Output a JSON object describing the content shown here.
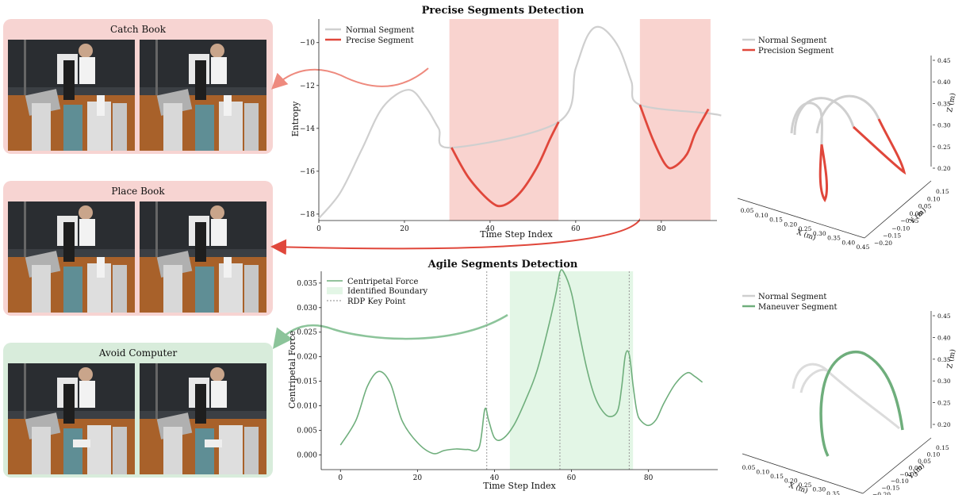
{
  "panels": [
    {
      "title": "Catch Book",
      "kind": "precise"
    },
    {
      "title": "Place Book",
      "kind": "precise"
    },
    {
      "title": "Avoid Computer",
      "kind": "agile"
    }
  ],
  "colors": {
    "normal": "#cfcfcf",
    "precise": "#e0473b",
    "precise_band": "#f9d3cf",
    "agile": "#6fae7c",
    "agile_band": "#e3f6e6",
    "panel_red": "#f7d4d2",
    "panel_green": "#d8ecdb"
  },
  "chart_data": [
    {
      "type": "line",
      "title": "Precise Segments Detection",
      "xlabel": "Time Step Index",
      "ylabel": "Entropy",
      "xlim": [
        0,
        93
      ],
      "ylim": [
        -18.3,
        -8.9
      ],
      "xticks": [
        0,
        20,
        40,
        60,
        80
      ],
      "yticks": [
        -18,
        -16,
        -14,
        -12,
        -10
      ],
      "legend": [
        "Normal Segment",
        "Precise Segment"
      ],
      "highlight_ranges": [
        [
          30.5,
          56
        ],
        [
          75,
          91.5
        ]
      ],
      "series": [
        {
          "name": "Normal Segment",
          "x": [
            0,
            5,
            10,
            15,
            21,
            25,
            28,
            31,
            56,
            60,
            63,
            66,
            70,
            73,
            75,
            91,
            94
          ],
          "y": [
            -18.2,
            -17.0,
            -15.0,
            -13.0,
            -12.2,
            -13.0,
            -14.0,
            -14.9,
            -13.7,
            -11.2,
            -9.6,
            -9.3,
            -10.2,
            -11.8,
            -12.9,
            -13.3,
            -13.4
          ]
        },
        {
          "name": "Precise Segment",
          "x": [
            31,
            35,
            40,
            43,
            47,
            51,
            54,
            56
          ],
          "y": [
            -14.9,
            -16.3,
            -17.4,
            -17.6,
            -17.0,
            -15.8,
            -14.5,
            -13.7
          ]
        },
        {
          "name": "Precise Segment",
          "x": [
            75,
            78,
            81,
            83,
            86,
            88,
            91
          ],
          "y": [
            -12.9,
            -14.5,
            -15.7,
            -15.8,
            -15.2,
            -14.2,
            -13.1
          ]
        }
      ]
    },
    {
      "type": "line",
      "title": "Agile Segments Detection",
      "xlabel": "Time Step Index",
      "ylabel": "Centripetal Force",
      "xlim": [
        -5,
        98
      ],
      "ylim": [
        -0.003,
        0.0374
      ],
      "xticks": [
        0,
        20,
        40,
        60,
        80
      ],
      "yticks": [
        "0.000",
        "0.005",
        "0.010",
        "0.015",
        "0.020",
        "0.025",
        "0.030",
        "0.035"
      ],
      "legend": [
        "Centripetal Force",
        "Identified Boundary",
        "RDP Key Point"
      ],
      "highlight_ranges": [
        [
          44,
          76
        ]
      ],
      "key_points": [
        38,
        57,
        75
      ],
      "series": [
        {
          "name": "Centripetal Force",
          "x": [
            0,
            4,
            7,
            10,
            13,
            16,
            20,
            24,
            27,
            30,
            33,
            36,
            37.5,
            38.5,
            40,
            42,
            45,
            48,
            51,
            54,
            56,
            57,
            58,
            60,
            62,
            64,
            66,
            68,
            70,
            72,
            73,
            74,
            75,
            76,
            77,
            78,
            80,
            82,
            84,
            87,
            90,
            92,
            94
          ],
          "y": [
            0.002,
            0.007,
            0.014,
            0.017,
            0.0145,
            0.007,
            0.0025,
            0.0003,
            0.0009,
            0.0012,
            0.0011,
            0.0015,
            0.0093,
            0.007,
            0.0035,
            0.0032,
            0.006,
            0.011,
            0.017,
            0.026,
            0.033,
            0.0372,
            0.0372,
            0.033,
            0.025,
            0.0175,
            0.012,
            0.009,
            0.0078,
            0.009,
            0.0135,
            0.0203,
            0.0205,
            0.0142,
            0.0088,
            0.007,
            0.006,
            0.0072,
            0.0105,
            0.0145,
            0.0167,
            0.016,
            0.0148
          ]
        }
      ]
    },
    {
      "type": "line",
      "title": "",
      "xlabel": "X (m)",
      "ylabel": "Y (m)",
      "zlabel": "Z (m)",
      "projection": "3d",
      "legend": [
        "Normal Segment",
        "Precision Segment"
      ],
      "x_ticks": [
        "0.05",
        "0.10",
        "0.15",
        "0.20",
        "0.25",
        "0.30",
        "0.35",
        "0.40",
        "0.45"
      ],
      "y_ticks": [
        "0.15",
        "0.10",
        "0.05",
        "0.00",
        "−0.05",
        "−0.10",
        "−0.15",
        "−0.20"
      ],
      "z_ticks": [
        "0.20",
        "0.25",
        "0.30",
        "0.35",
        "0.40",
        "0.45"
      ]
    },
    {
      "type": "line",
      "title": "",
      "xlabel": "X (m)",
      "ylabel": "Y (m)",
      "zlabel": "Z (m)",
      "projection": "3d",
      "legend": [
        "Normal Segment",
        "Maneuver Segment"
      ],
      "x_ticks": [
        "0.05",
        "0.10",
        "0.15",
        "0.20",
        "0.25",
        "0.30",
        "0.35",
        "0.40",
        "0.45"
      ],
      "y_ticks": [
        "0.15",
        "0.10",
        "0.05",
        "0.00",
        "−0.05",
        "−0.10",
        "−0.15",
        "−0.20"
      ],
      "z_ticks": [
        "0.20",
        "0.25",
        "0.30",
        "0.35",
        "0.40",
        "0.45"
      ]
    }
  ]
}
